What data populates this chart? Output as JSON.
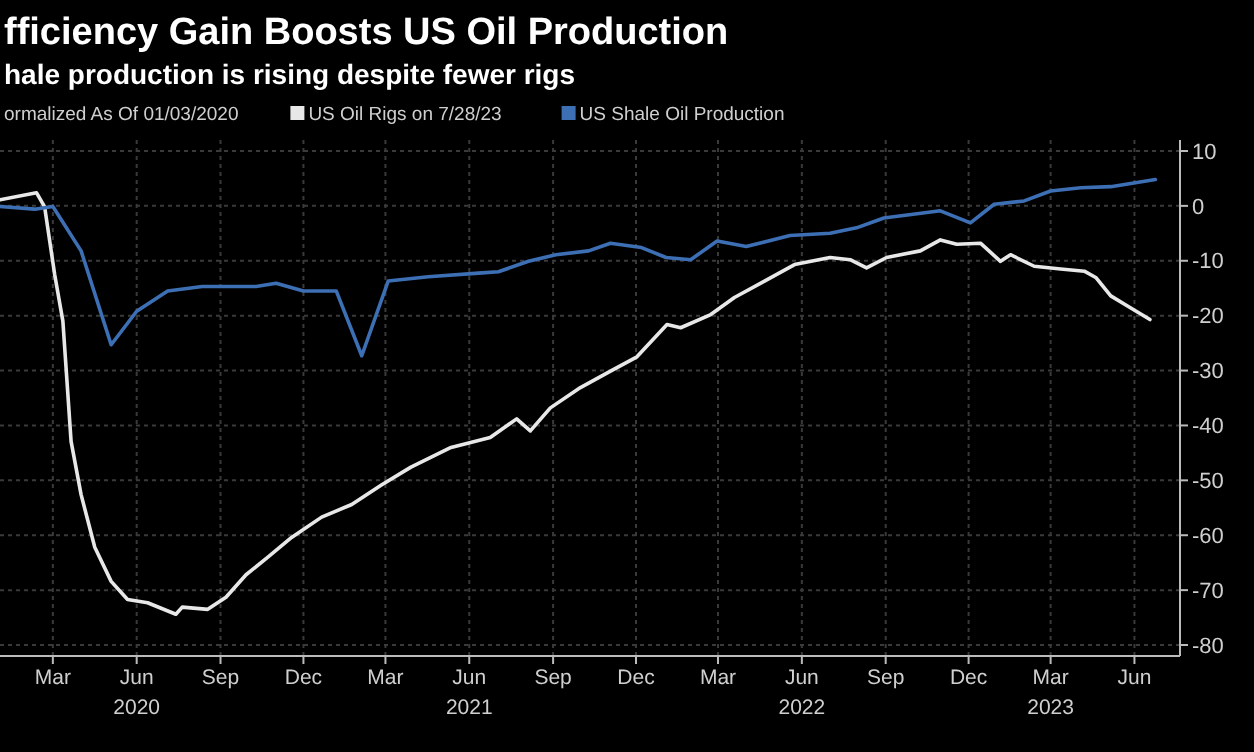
{
  "chart_data": {
    "type": "line",
    "title": "fficiency Gain Boosts US Oil Production",
    "subtitle": "hale production is rising despite fewer rigs",
    "legend_title": "ormalized As Of 01/03/2020",
    "legend": "top left",
    "grid": true,
    "xlim": [
      "2020-01-03",
      "2023-07-21"
    ],
    "ylim": [
      -82,
      12
    ],
    "yticks": [
      10,
      0,
      -10,
      -20,
      -30,
      -40,
      -50,
      -60,
      -70,
      -80
    ],
    "xticks": [
      {
        "value": "2020-03-01",
        "label": "Mar"
      },
      {
        "value": "2020-06-01",
        "label": "Jun\n2020"
      },
      {
        "value": "2020-09-01",
        "label": "Sep"
      },
      {
        "value": "2020-12-01",
        "label": "Dec"
      },
      {
        "value": "2021-03-01",
        "label": "Mar"
      },
      {
        "value": "2021-06-01",
        "label": "Jun\n2021"
      },
      {
        "value": "2021-09-01",
        "label": "Sep"
      },
      {
        "value": "2021-12-01",
        "label": "Dec"
      },
      {
        "value": "2022-03-01",
        "label": "Mar"
      },
      {
        "value": "2022-06-01",
        "label": "Jun\n2022"
      },
      {
        "value": "2022-09-01",
        "label": "Sep"
      },
      {
        "value": "2022-12-01",
        "label": "Dec"
      },
      {
        "value": "2023-03-01",
        "label": "Mar\n2023"
      },
      {
        "value": "2023-06-01",
        "label": "Jun"
      }
    ],
    "series": [
      {
        "name": "US Oil Rigs on 7/28/23",
        "color": "#e8e8e8",
        "x": [
          "2020-01-03",
          "2020-02-12",
          "2020-02-21",
          "2020-03-03",
          "2020-03-12",
          "2020-03-21",
          "2020-04-01",
          "2020-04-16",
          "2020-05-04",
          "2020-05-22",
          "2020-06-13",
          "2020-07-14",
          "2020-07-21",
          "2020-08-18",
          "2020-09-07",
          "2020-09-29",
          "2020-10-23",
          "2020-11-18",
          "2020-12-21",
          "2021-01-23",
          "2021-02-25",
          "2021-03-29",
          "2021-05-12",
          "2021-06-24",
          "2021-07-23",
          "2021-08-07",
          "2021-08-29",
          "2021-10-01",
          "2021-11-03",
          "2021-12-02",
          "2022-01-04",
          "2022-01-19",
          "2022-02-21",
          "2022-03-19",
          "2022-04-21",
          "2022-05-24",
          "2022-07-02",
          "2022-07-24",
          "2022-08-11",
          "2022-09-02",
          "2022-10-09",
          "2022-10-31",
          "2022-11-18",
          "2022-12-14",
          "2023-01-05",
          "2023-01-16",
          "2023-02-11",
          "2023-03-12",
          "2023-04-07",
          "2023-04-20",
          "2023-05-06",
          "2023-05-28",
          "2023-06-18"
        ],
        "values": [
          1.1,
          2.4,
          -0.2,
          -12.5,
          -21,
          -42.9,
          -52.6,
          -62.2,
          -68.4,
          -71.7,
          -72.3,
          -74.4,
          -73.1,
          -73.5,
          -71.3,
          -67.2,
          -64,
          -60.4,
          -56.7,
          -54.4,
          -50.8,
          -47.6,
          -44,
          -42.2,
          -38.8,
          -41,
          -36.8,
          -33.1,
          -30.1,
          -27.5,
          -21.6,
          -22.2,
          -19.8,
          -16.7,
          -13.7,
          -10.7,
          -9.4,
          -9.8,
          -11.3,
          -9.4,
          -8.2,
          -6.2,
          -7,
          -6.8,
          -10.1,
          -8.9,
          -11,
          -11.5,
          -11.9,
          -13.1,
          -16.4,
          -18.6,
          -20.7
        ]
      },
      {
        "name": "US Shale Oil Production",
        "color": "#3d6fb5",
        "x": [
          "2020-01-03",
          "2020-02-10",
          "2020-03-01",
          "2020-04-01",
          "2020-05-04",
          "2020-06-01",
          "2020-07-05",
          "2020-08-12",
          "2020-10-10",
          "2020-11-01",
          "2020-12-01",
          "2021-01-06",
          "2021-02-03",
          "2021-03-04",
          "2021-04-17",
          "2021-06-15",
          "2021-07-03",
          "2021-08-05",
          "2021-09-04",
          "2021-10-10",
          "2021-11-03",
          "2021-12-07",
          "2022-01-03",
          "2022-01-30",
          "2022-02-28",
          "2022-04-01",
          "2022-05-19",
          "2022-07-02",
          "2022-07-31",
          "2022-08-30",
          "2022-10-31",
          "2022-12-03",
          "2022-12-29",
          "2023-01-31",
          "2023-03-01",
          "2023-04-03",
          "2023-05-06",
          "2023-06-24"
        ],
        "values": [
          -0.1,
          -0.6,
          -0.1,
          -8.2,
          -25.3,
          -19.2,
          -15.5,
          -14.7,
          -14.7,
          -14.1,
          -15.5,
          -15.5,
          -27.3,
          -13.7,
          -12.9,
          -12.2,
          -12,
          -10.1,
          -8.9,
          -8.2,
          -6.8,
          -7.6,
          -9.4,
          -9.8,
          -6.4,
          -7.4,
          -5.4,
          -5,
          -4,
          -2.2,
          -0.9,
          -3.1,
          0.3,
          0.9,
          2.7,
          3.3,
          3.5,
          4.8
        ]
      }
    ]
  }
}
